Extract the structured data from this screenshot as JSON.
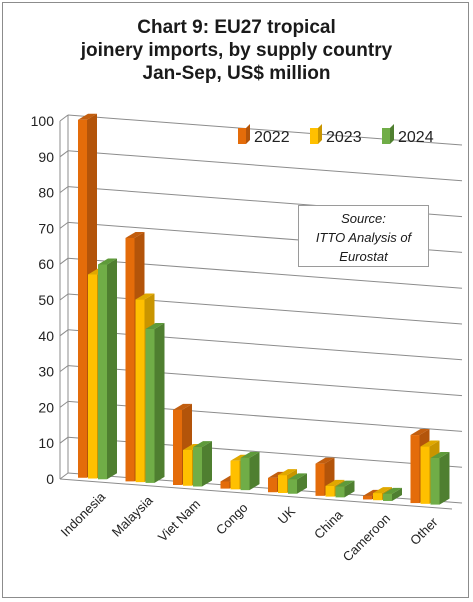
{
  "chart_data": {
    "type": "bar",
    "title_lines": [
      "Chart 9: EU27 tropical",
      "joinery imports, by supply country",
      "Jan-Sep, US$ million"
    ],
    "categories": [
      "Indonesia",
      "Malaysia",
      "Viet Nam",
      "Congo",
      "UK",
      "China",
      "Cameroon",
      "Other"
    ],
    "series": [
      {
        "name": "2022",
        "values": [
          100,
          68,
          21,
          2,
          4,
          9,
          1,
          19
        ]
      },
      {
        "name": "2023",
        "values": [
          57,
          51,
          10,
          8,
          5,
          3,
          2,
          16
        ]
      },
      {
        "name": "2024",
        "values": [
          60,
          43,
          11,
          9,
          4,
          3,
          2,
          13
        ]
      }
    ],
    "y_ticks": [
      "0",
      "10",
      "20",
      "30",
      "40",
      "50",
      "60",
      "70",
      "80",
      "90",
      "100"
    ],
    "ylim": [
      0,
      100
    ],
    "grid": true,
    "legend_position": "top-right",
    "source_lines": [
      "Source:",
      "ITTO Analysis of",
      "Eurostat"
    ],
    "colors": {
      "2022": {
        "front": "#e46c0a",
        "side": "#b3540a",
        "top": "#c25e0f"
      },
      "2023": {
        "front": "#ffc000",
        "side": "#c99500",
        "top": "#e0a800"
      },
      "2024": {
        "front": "#70ad47",
        "side": "#4f7f30",
        "top": "#5e9a3a"
      },
      "grid": "#8c8c8c"
    }
  }
}
